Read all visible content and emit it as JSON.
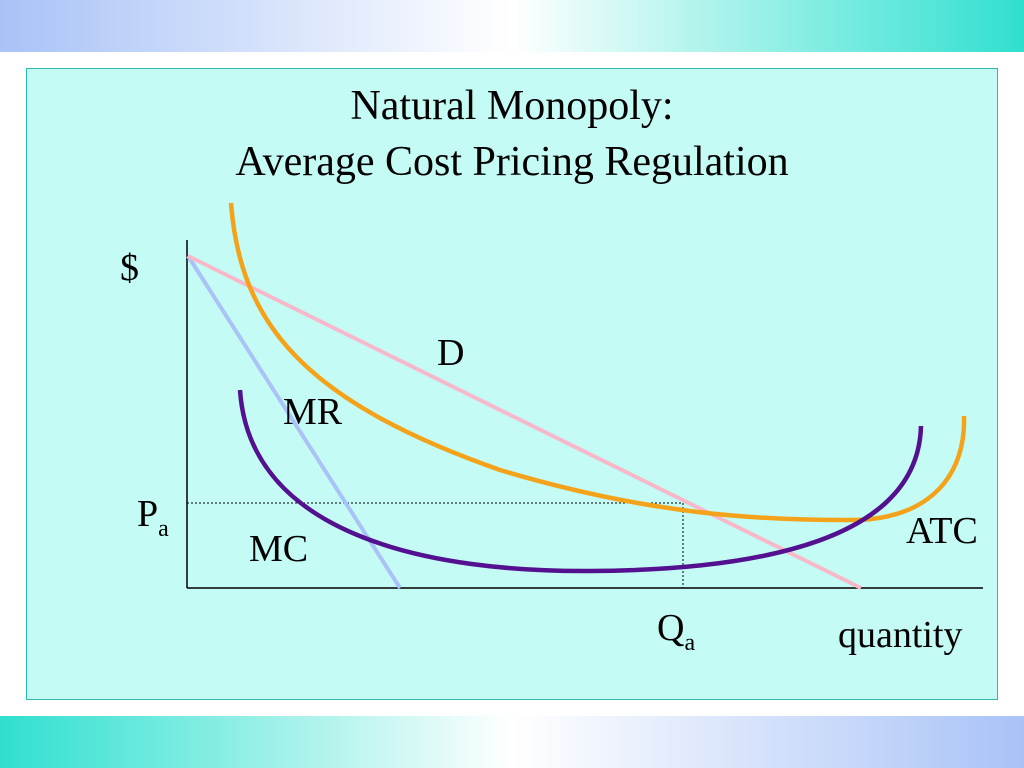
{
  "title": {
    "line1": "Natural Monopoly:",
    "line2": "Average Cost Pricing Regulation"
  },
  "axes": {
    "y_label": "$",
    "x_label": "quantity"
  },
  "curves": {
    "demand": {
      "label": "D",
      "color": "#f7b9c9"
    },
    "marginal_revenue": {
      "label": "MR",
      "color": "#a9c3f7"
    },
    "average_total_cost": {
      "label": "ATC",
      "color": "#f4a21a"
    },
    "marginal_cost": {
      "label": "MC",
      "color": "#53108f"
    }
  },
  "price": {
    "symbol": "P",
    "subscript": "a"
  },
  "quantity": {
    "symbol": "Q",
    "subscript": "a"
  }
}
